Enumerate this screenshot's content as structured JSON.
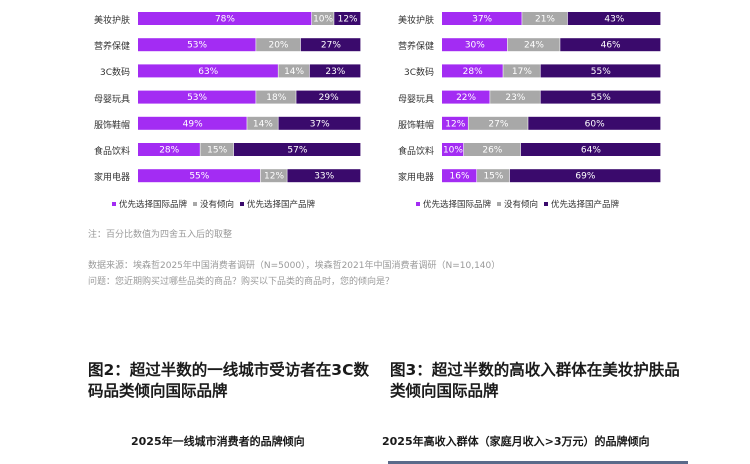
{
  "chart_data": [
    {
      "type": "bar",
      "orientation": "horizontal",
      "stacked": true,
      "categories": [
        "美妆护肤",
        "营养保健",
        "3C数码",
        "母婴玩具",
        "服饰鞋帽",
        "食品饮料",
        "家用电器"
      ],
      "series": [
        {
          "name": "优先选择国际品牌",
          "color": "#a32cf3",
          "values": [
            78,
            53,
            63,
            53,
            49,
            28,
            55
          ]
        },
        {
          "name": "没有倾向",
          "color": "#a8a8a8",
          "values": [
            10,
            20,
            14,
            18,
            14,
            15,
            12
          ]
        },
        {
          "name": "优先选择国产品牌",
          "color": "#3a0a6c",
          "values": [
            12,
            27,
            23,
            29,
            37,
            57,
            33
          ]
        }
      ],
      "legend": "bottom"
    },
    {
      "type": "bar",
      "orientation": "horizontal",
      "stacked": true,
      "categories": [
        "美妆护肤",
        "营养保健",
        "3C数码",
        "母婴玩具",
        "服饰鞋帽",
        "食品饮料",
        "家用电器"
      ],
      "series": [
        {
          "name": "优先选择国际品牌",
          "color": "#a32cf3",
          "values": [
            37,
            30,
            28,
            22,
            12,
            10,
            16
          ]
        },
        {
          "name": "没有倾向",
          "color": "#a8a8a8",
          "values": [
            21,
            24,
            17,
            23,
            27,
            26,
            15
          ]
        },
        {
          "name": "优先选择国产品牌",
          "color": "#3a0a6c",
          "values": [
            43,
            46,
            55,
            55,
            60,
            64,
            69
          ]
        }
      ],
      "legend": "bottom"
    }
  ],
  "notes": {
    "rounding": "注：百分比数值为四舍五入后的取整",
    "source": "数据来源：埃森哲2025年中国消费者调研（N=5000），埃森哲2021年中国消费者调研（N=10,140）",
    "question": "问题：您近期购买过哪些品类的商品？购买以下品类的商品时，您的倾向是？"
  },
  "figures": {
    "fig2_title": "图2：超过半数的一线城市受访者在3C数码品类倾向国际品牌",
    "fig2_subtitle": "2025年一线城市消费者的品牌倾向",
    "fig3_title": "图3：超过半数的高收入群体在美妆护肤品类倾向国际品牌",
    "fig3_subtitle": "2025年高收入群体（家庭月收入>3万元）的品牌倾向"
  }
}
